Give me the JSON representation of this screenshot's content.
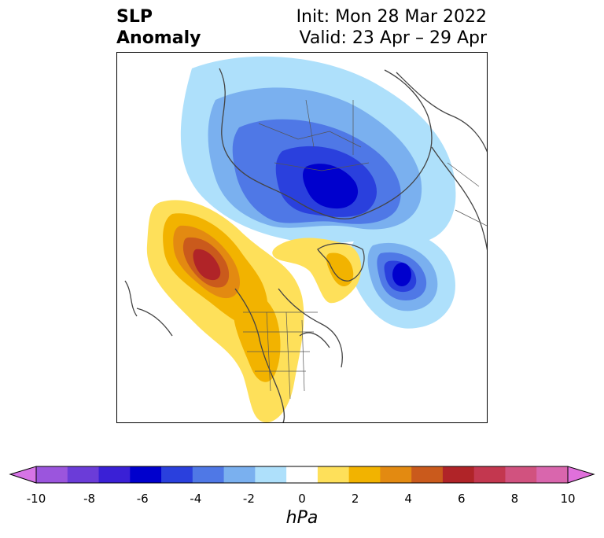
{
  "title": {
    "left_line1": "SLP",
    "left_line2": "Anomaly",
    "init": "Init: Mon 28 Mar 2022",
    "valid": "Valid: 23 Apr – 29 Apr"
  },
  "colorbar": {
    "unit": "hPa",
    "ticks": [
      "-10",
      "-8",
      "-6",
      "-4",
      "-2",
      "0",
      "2",
      "4",
      "6",
      "8",
      "10"
    ],
    "colors": [
      "#d674e6",
      "#9b55dd",
      "#6b3cd8",
      "#3a20d6",
      "#0000cd",
      "#2a40dd",
      "#4f78e6",
      "#7ab0ef",
      "#aee0fb",
      "#ffffff",
      "#fee05a",
      "#f2b300",
      "#e38a11",
      "#ca5a1c",
      "#b02428",
      "#c3374f",
      "#d1527f",
      "#d966ad",
      "#e070db"
    ],
    "extend": "both"
  },
  "map": {
    "projection": "north polar stereographic",
    "features": {
      "arctic_low": "strong negative anomaly over Arctic / northern Eurasia",
      "atlantic_low": "negative anomaly center over North Atlantic",
      "pacific_high": "positive anomaly center over Gulf of Alaska",
      "north_america_high": "positive anomaly band over western US"
    },
    "colors": {
      "coast": "#444444"
    }
  }
}
